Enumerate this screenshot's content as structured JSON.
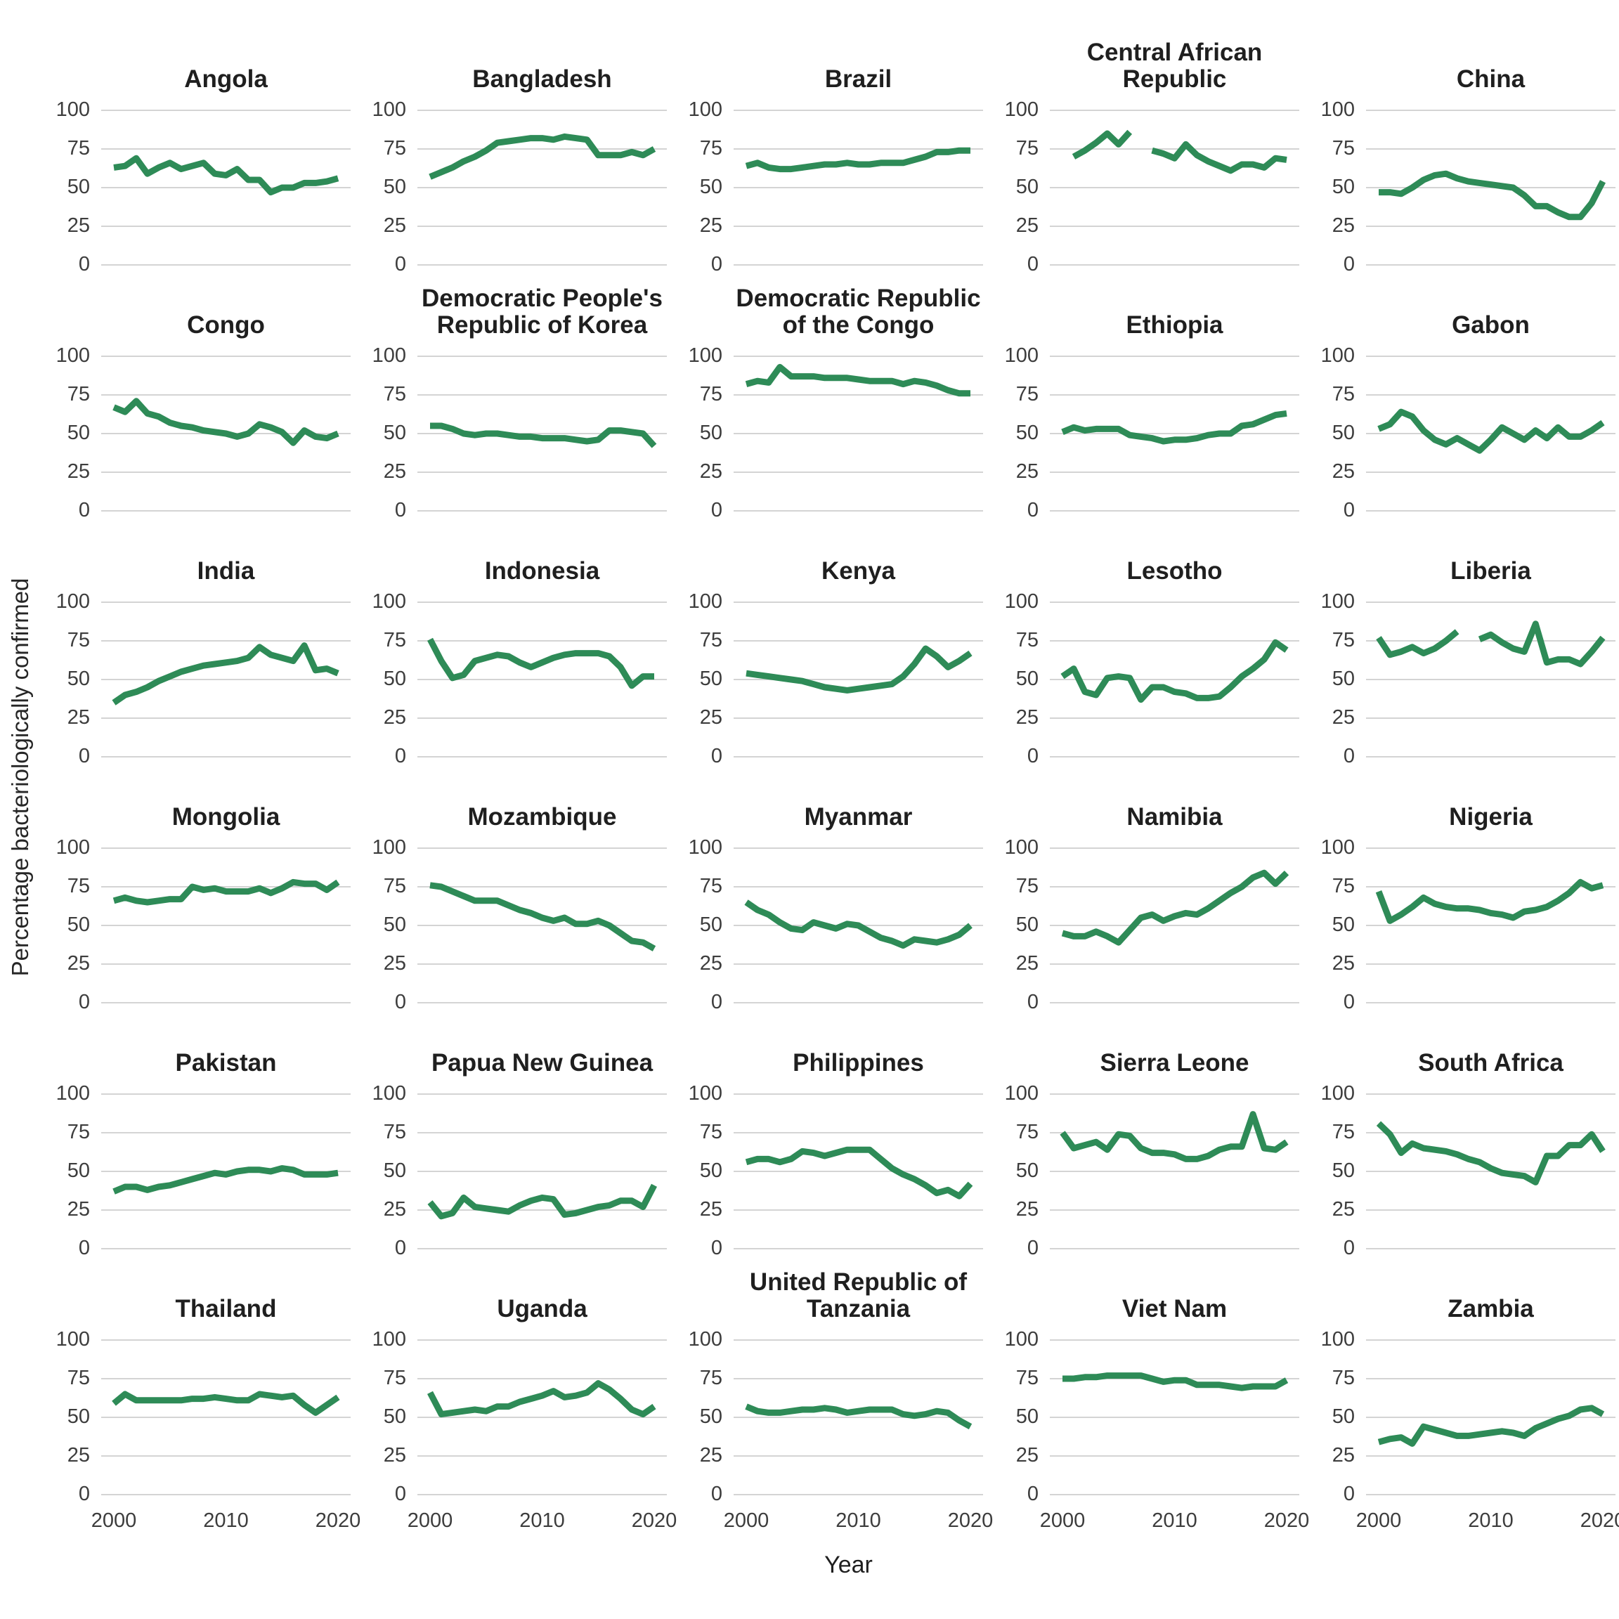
{
  "y_axis_label": "Percentage bacteriologically confirmed",
  "x_axis_label": "Year",
  "colors": {
    "line": "#2e8b57",
    "gridline": "#d4d4d4",
    "tick_text": "#3d3d3d",
    "title_text": "#1f1f1f",
    "background": "#ffffff"
  },
  "chart_data": {
    "type": "line",
    "title": "",
    "xlabel": "Year",
    "ylabel": "Percentage bacteriologically confirmed",
    "x_start": 2000,
    "x_end": 2020,
    "ylim": [
      0,
      100
    ],
    "yticks": [
      100,
      75,
      50,
      25,
      0
    ],
    "xticks": [
      2000,
      2010,
      2020
    ],
    "grid": "horizontal-only",
    "legend": "none",
    "line_color": "#2e8b57",
    "facets": [
      {
        "title": "Angola",
        "values": [
          63,
          64,
          69,
          59,
          63,
          66,
          62,
          64,
          66,
          59,
          58,
          62,
          55,
          55,
          47,
          50,
          50,
          53,
          53,
          54,
          56
        ]
      },
      {
        "title": "Bangladesh",
        "values": [
          57,
          60,
          63,
          67,
          70,
          74,
          79,
          80,
          81,
          82,
          82,
          81,
          83,
          82,
          81,
          71,
          71,
          71,
          73,
          71,
          75
        ]
      },
      {
        "title": "Brazil",
        "values": [
          64,
          66,
          63,
          62,
          62,
          63,
          64,
          65,
          65,
          66,
          65,
          65,
          66,
          66,
          66,
          68,
          70,
          73,
          73,
          74,
          74
        ]
      },
      {
        "title": "Central African Republic",
        "values": [
          null,
          70,
          74,
          79,
          85,
          78,
          86,
          null,
          74,
          72,
          69,
          78,
          71,
          67,
          64,
          61,
          65,
          65,
          63,
          69,
          68
        ]
      },
      {
        "title": "China",
        "values": [
          47,
          47,
          46,
          50,
          55,
          58,
          59,
          56,
          54,
          53,
          52,
          51,
          50,
          45,
          38,
          38,
          34,
          31,
          31,
          40,
          54
        ]
      },
      {
        "title": "Congo",
        "values": [
          67,
          64,
          71,
          63,
          61,
          57,
          55,
          54,
          52,
          51,
          50,
          48,
          50,
          56,
          54,
          51,
          44,
          52,
          48,
          47,
          50
        ]
      },
      {
        "title": "Democratic People's Republic of Korea",
        "values": [
          55,
          55,
          53,
          50,
          49,
          50,
          50,
          49,
          48,
          48,
          47,
          47,
          47,
          46,
          45,
          46,
          52,
          52,
          51,
          50,
          42
        ]
      },
      {
        "title": "Democratic Republic of the Congo",
        "values": [
          82,
          84,
          83,
          93,
          87,
          87,
          87,
          86,
          86,
          86,
          85,
          84,
          84,
          84,
          82,
          84,
          83,
          81,
          78,
          76,
          76
        ]
      },
      {
        "title": "Ethiopia",
        "values": [
          51,
          54,
          52,
          53,
          53,
          53,
          49,
          48,
          47,
          45,
          46,
          46,
          47,
          49,
          50,
          50,
          55,
          56,
          59,
          62,
          63
        ]
      },
      {
        "title": "Gabon",
        "values": [
          53,
          56,
          64,
          61,
          52,
          46,
          43,
          47,
          43,
          39,
          46,
          54,
          50,
          46,
          52,
          47,
          54,
          48,
          48,
          52,
          57
        ]
      },
      {
        "title": "India",
        "values": [
          35,
          40,
          42,
          45,
          49,
          52,
          55,
          57,
          59,
          60,
          61,
          62,
          64,
          71,
          66,
          64,
          62,
          72,
          56,
          57,
          54
        ]
      },
      {
        "title": "Indonesia",
        "values": [
          76,
          62,
          51,
          53,
          62,
          64,
          66,
          65,
          61,
          58,
          61,
          64,
          66,
          67,
          67,
          67,
          65,
          58,
          46,
          52,
          52
        ]
      },
      {
        "title": "Kenya",
        "values": [
          54,
          53,
          52,
          51,
          50,
          49,
          47,
          45,
          44,
          43,
          44,
          45,
          46,
          47,
          52,
          60,
          70,
          65,
          58,
          62,
          67
        ]
      },
      {
        "title": "Lesotho",
        "values": [
          52,
          57,
          42,
          40,
          51,
          52,
          51,
          37,
          45,
          45,
          42,
          41,
          38,
          38,
          39,
          45,
          52,
          57,
          63,
          74,
          69
        ]
      },
      {
        "title": "Liberia",
        "values": [
          77,
          66,
          68,
          71,
          67,
          70,
          75,
          81,
          null,
          76,
          79,
          74,
          70,
          68,
          86,
          61,
          63,
          63,
          60,
          68,
          77
        ]
      },
      {
        "title": "Mongolia",
        "values": [
          66,
          68,
          66,
          65,
          66,
          67,
          67,
          75,
          73,
          74,
          72,
          72,
          72,
          74,
          71,
          74,
          78,
          77,
          77,
          73,
          78
        ]
      },
      {
        "title": "Mozambique",
        "values": [
          76,
          75,
          72,
          69,
          66,
          66,
          66,
          63,
          60,
          58,
          55,
          53,
          55,
          51,
          51,
          53,
          50,
          45,
          40,
          39,
          35
        ]
      },
      {
        "title": "Myanmar",
        "values": [
          65,
          60,
          57,
          52,
          48,
          47,
          52,
          50,
          48,
          51,
          50,
          46,
          42,
          40,
          37,
          41,
          40,
          39,
          41,
          44,
          50
        ]
      },
      {
        "title": "Namibia",
        "values": [
          45,
          43,
          43,
          46,
          43,
          39,
          47,
          55,
          57,
          53,
          56,
          58,
          57,
          61,
          66,
          71,
          75,
          81,
          84,
          77,
          84
        ]
      },
      {
        "title": "Nigeria",
        "values": [
          72,
          53,
          57,
          62,
          68,
          64,
          62,
          61,
          61,
          60,
          58,
          57,
          55,
          59,
          60,
          62,
          66,
          71,
          78,
          74,
          76
        ]
      },
      {
        "title": "Pakistan",
        "values": [
          37,
          40,
          40,
          38,
          40,
          41,
          43,
          45,
          47,
          49,
          48,
          50,
          51,
          51,
          50,
          52,
          51,
          48,
          48,
          48,
          49
        ]
      },
      {
        "title": "Papua New Guinea",
        "values": [
          30,
          21,
          23,
          33,
          27,
          26,
          25,
          24,
          28,
          31,
          33,
          32,
          22,
          23,
          25,
          27,
          28,
          31,
          31,
          27,
          41
        ]
      },
      {
        "title": "Philippines",
        "values": [
          56,
          58,
          58,
          56,
          58,
          63,
          62,
          60,
          62,
          64,
          64,
          64,
          58,
          52,
          48,
          45,
          41,
          36,
          38,
          34,
          42
        ]
      },
      {
        "title": "Sierra Leone",
        "values": [
          75,
          65,
          67,
          69,
          64,
          74,
          73,
          65,
          62,
          62,
          61,
          58,
          58,
          60,
          64,
          66,
          66,
          87,
          65,
          64,
          69
        ]
      },
      {
        "title": "South Africa",
        "values": [
          81,
          74,
          62,
          68,
          65,
          64,
          63,
          61,
          58,
          56,
          52,
          49,
          48,
          47,
          43,
          60,
          60,
          67,
          67,
          74,
          63
        ]
      },
      {
        "title": "Thailand",
        "values": [
          59,
          65,
          61,
          61,
          61,
          61,
          61,
          62,
          62,
          63,
          62,
          61,
          61,
          65,
          64,
          63,
          64,
          58,
          53,
          58,
          63
        ]
      },
      {
        "title": "Uganda",
        "values": [
          66,
          52,
          53,
          54,
          55,
          54,
          57,
          57,
          60,
          62,
          64,
          67,
          63,
          64,
          66,
          72,
          68,
          62,
          55,
          52,
          57
        ]
      },
      {
        "title": "United Republic of Tanzania",
        "values": [
          57,
          54,
          53,
          53,
          54,
          55,
          55,
          56,
          55,
          53,
          54,
          55,
          55,
          55,
          52,
          51,
          52,
          54,
          53,
          48,
          44
        ]
      },
      {
        "title": "Viet Nam",
        "values": [
          75,
          75,
          76,
          76,
          77,
          77,
          77,
          77,
          75,
          73,
          74,
          74,
          71,
          71,
          71,
          70,
          69,
          70,
          70,
          70,
          74
        ]
      },
      {
        "title": "Zambia",
        "values": [
          34,
          36,
          37,
          33,
          44,
          42,
          40,
          38,
          38,
          39,
          40,
          41,
          40,
          38,
          43,
          46,
          49,
          51,
          55,
          56,
          52
        ]
      }
    ]
  }
}
